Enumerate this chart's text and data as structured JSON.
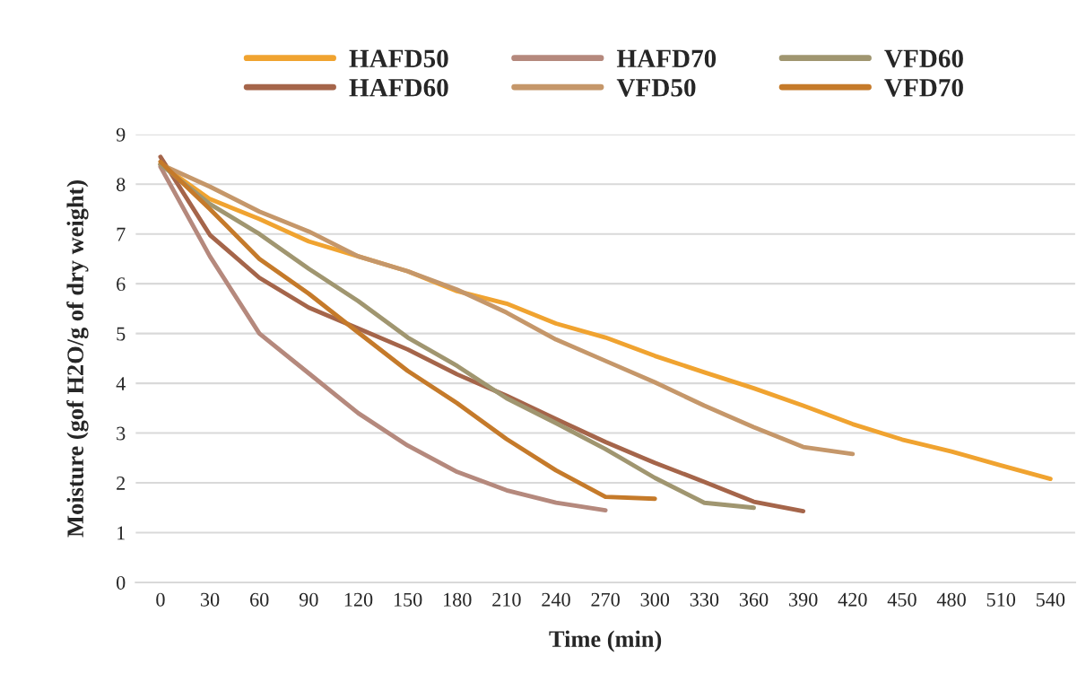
{
  "chart_data": {
    "type": "line",
    "xlabel": "Time (min)",
    "ylabel": "Moisture (gof H2O/g of dry weight)",
    "categories": [
      "0",
      "30",
      "60",
      "90",
      "120",
      "150",
      "180",
      "210",
      "240",
      "270",
      "300",
      "330",
      "360",
      "390",
      "420",
      "450",
      "480",
      "510",
      "540"
    ],
    "series": [
      {
        "name": "HAFD50",
        "color": "#f0a330",
        "values": [
          8.4,
          7.7,
          7.3,
          6.85,
          6.55,
          6.25,
          5.85,
          5.6,
          5.2,
          4.92,
          4.55,
          4.22,
          3.9,
          3.55,
          3.18,
          2.87,
          2.63,
          2.35,
          2.08
        ]
      },
      {
        "name": "HAFD60",
        "color": "#a5654a",
        "values": [
          8.55,
          6.98,
          6.12,
          5.52,
          5.1,
          4.68,
          4.18,
          3.75,
          3.28,
          2.82,
          2.4,
          2.02,
          1.62,
          1.43,
          null,
          null,
          null,
          null,
          null
        ]
      },
      {
        "name": "HAFD70",
        "color": "#b5897d",
        "values": [
          8.35,
          6.55,
          5.0,
          4.2,
          3.4,
          2.75,
          2.22,
          1.85,
          1.6,
          1.45,
          null,
          null,
          null,
          null,
          null,
          null,
          null,
          null,
          null
        ]
      },
      {
        "name": "VFD50",
        "color": "#c5976a",
        "values": [
          8.4,
          7.95,
          7.45,
          7.05,
          6.55,
          6.25,
          5.88,
          5.42,
          4.88,
          4.45,
          4.02,
          3.55,
          3.12,
          2.72,
          2.58,
          null,
          null,
          null,
          null
        ]
      },
      {
        "name": "VFD60",
        "color": "#a09670",
        "values": [
          8.4,
          7.6,
          7.0,
          6.3,
          5.65,
          4.92,
          4.35,
          3.7,
          3.2,
          2.68,
          2.1,
          1.6,
          1.5,
          null,
          null,
          null,
          null,
          null,
          null
        ]
      },
      {
        "name": "VFD70",
        "color": "#c57a2a",
        "values": [
          8.45,
          7.5,
          6.5,
          5.8,
          5.02,
          4.25,
          3.6,
          2.88,
          2.25,
          1.72,
          1.68,
          null,
          null,
          null,
          null,
          null,
          null,
          null,
          null
        ]
      }
    ],
    "ylim": [
      0,
      9
    ],
    "yticks": [
      0,
      1,
      2,
      3,
      4,
      5,
      6,
      7,
      8,
      9
    ],
    "grid": "y",
    "legend": "top",
    "marker": "none",
    "line_style": "solid"
  }
}
